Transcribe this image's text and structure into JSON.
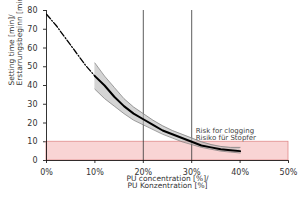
{
  "chart_data": {
    "type": "line",
    "xlabel": "PU concentration [%]/\nPU Konzentration [%]",
    "ylabel": "Setting time [min]/\nErstarrungsbeginn [min]",
    "x": [
      0,
      2,
      4,
      6,
      8,
      10,
      12,
      14,
      16,
      18,
      20,
      22,
      24,
      26,
      28,
      30,
      32,
      34,
      36,
      38,
      40
    ],
    "series": [
      {
        "color": "#000000",
        "line_style": "dashdot",
        "values": [
          78,
          72,
          65,
          58,
          51,
          45,
          null,
          null,
          null,
          null,
          null,
          null,
          null,
          null,
          null,
          null,
          null,
          null,
          null,
          null,
          null
        ]
      },
      {
        "color": "#000000",
        "line_style": "solid",
        "values": [
          null,
          null,
          null,
          null,
          null,
          45,
          40,
          34,
          29,
          25,
          22,
          19,
          16,
          14,
          12,
          10,
          8,
          7,
          6,
          5.5,
          5
        ]
      }
    ],
    "band_lower": [
      null,
      null,
      null,
      null,
      null,
      38,
      33,
      29,
      25,
      21.5,
      19,
      16.5,
      14,
      12,
      10,
      8.5,
      7,
      6,
      5,
      4.5,
      4
    ],
    "band_upper": [
      null,
      null,
      null,
      null,
      null,
      52,
      45,
      39,
      33,
      28.5,
      25,
      21.5,
      18.5,
      16,
      14,
      12,
      10,
      8.5,
      7.5,
      7,
      7
    ],
    "vertical_lines": [
      20,
      30
    ],
    "shaded_region": {
      "y_from": 0,
      "y_to": 10,
      "color": "#f9d4d4",
      "text": "Risk for clogging\nRisiko für Stopfer"
    },
    "xlim": [
      0,
      50
    ],
    "xticks": [
      {
        "value": 0,
        "label": "0%"
      },
      {
        "value": 10,
        "label": "10%"
      },
      {
        "value": 20,
        "label": "20%"
      },
      {
        "value": 30,
        "label": "30%"
      },
      {
        "value": 40,
        "label": "40%"
      },
      {
        "value": 50,
        "label": "50%"
      }
    ],
    "ylim": [
      0,
      80
    ],
    "yticks": [
      0,
      10,
      20,
      30,
      40,
      50,
      60,
      70,
      80
    ],
    "grid": false
  }
}
